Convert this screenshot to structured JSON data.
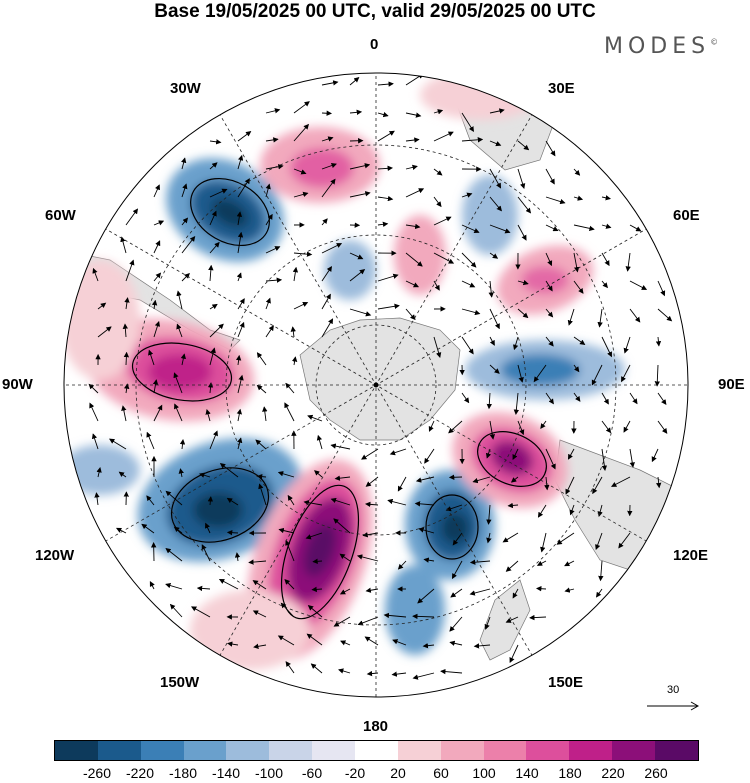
{
  "title": "Base 19/05/2025 00 UTC, valid 29/05/2025 00 UTC",
  "brand": "MODES",
  "brand_mark": "©",
  "longitude_labels": {
    "top": "0",
    "bottom": "180",
    "left": "90W",
    "right": "90E",
    "upper_left_1": "30W",
    "upper_left_2": "60W",
    "upper_right_1": "30E",
    "upper_right_2": "60E",
    "lower_left_1": "120W",
    "lower_left_2": "150W",
    "lower_right_1": "120E",
    "lower_right_2": "150E"
  },
  "reference_vector": "30",
  "colorbar": {
    "colors": [
      "#0d3a5c",
      "#1b5a8c",
      "#3b7fb6",
      "#6aa0cc",
      "#9dbcdc",
      "#c9d4e8",
      "#e6e6f2",
      "#ffffff",
      "#f6d0d6",
      "#f2a9bd",
      "#ec80aa",
      "#dd4f9c",
      "#bf2089",
      "#8c0f79",
      "#5a0a66"
    ],
    "ticks": [
      "-260",
      "-220",
      "-180",
      "-140",
      "-100",
      "-60",
      "-20",
      "20",
      "60",
      "100",
      "140",
      "180",
      "220",
      "260"
    ]
  },
  "anomaly_centers": [
    {
      "sign": "neg",
      "intensity": "strong",
      "label": "South Atlantic / Weddell"
    },
    {
      "sign": "pos",
      "intensity": "moderate",
      "label": "South of Africa"
    },
    {
      "sign": "pos",
      "intensity": "strong",
      "label": "Southeast Pacific (90W)"
    },
    {
      "sign": "neg",
      "intensity": "strong",
      "label": "South Pacific (120W)"
    },
    {
      "sign": "pos",
      "intensity": "very strong",
      "label": "South Pacific (150W-170W)"
    },
    {
      "sign": "neg",
      "intensity": "strong",
      "label": "South of New Zealand"
    },
    {
      "sign": "pos",
      "intensity": "strong",
      "label": "South of Australia (110E)"
    },
    {
      "sign": "neg",
      "intensity": "moderate",
      "label": "Indian Ocean (90E)"
    },
    {
      "sign": "pos",
      "intensity": "moderate",
      "label": "Indian Ocean (60E)"
    }
  ]
}
